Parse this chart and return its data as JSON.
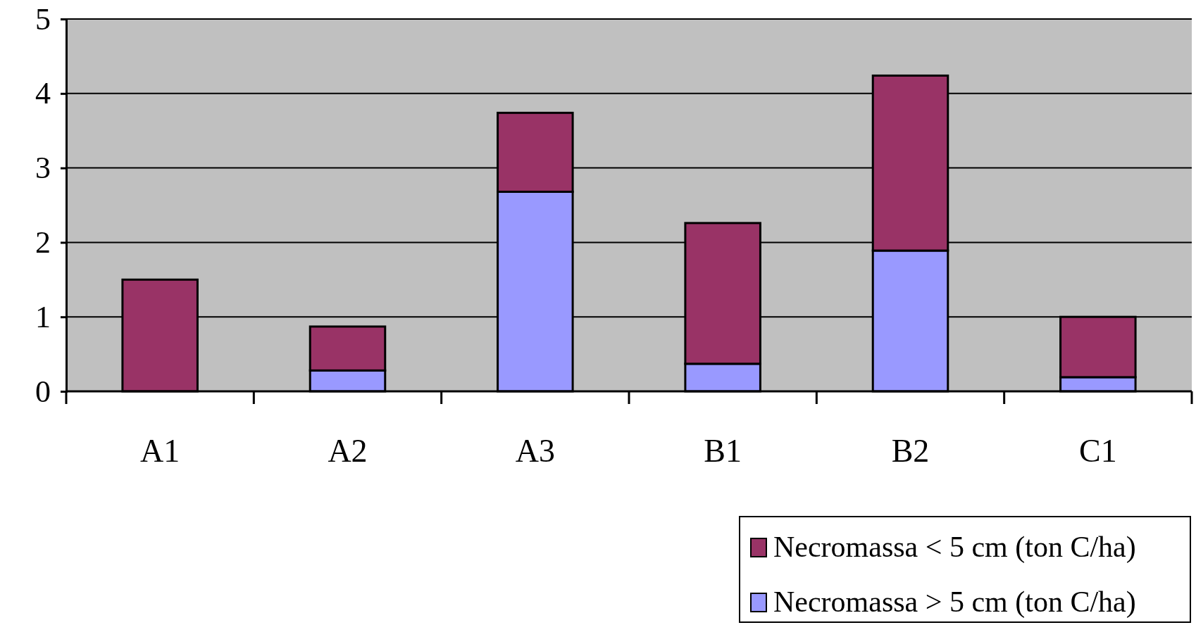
{
  "chart_data": {
    "type": "bar",
    "stacked": true,
    "categories": [
      "A1",
      "A2",
      "A3",
      "B1",
      "B2",
      "C1"
    ],
    "series": [
      {
        "name": "Necromassa > 5 cm (ton C/ha)",
        "color": "#9999ff",
        "values": [
          0,
          0.28,
          2.68,
          0.37,
          1.89,
          0.19
        ]
      },
      {
        "name": "Necromassa < 5 cm (ton C/ha)",
        "color": "#993366",
        "values": [
          1.5,
          0.59,
          1.06,
          1.89,
          2.35,
          0.81
        ]
      }
    ],
    "ylim": [
      0,
      5
    ],
    "yticks": [
      0,
      1,
      2,
      3,
      4,
      5
    ],
    "grid": "y",
    "legend": "bottom right"
  }
}
